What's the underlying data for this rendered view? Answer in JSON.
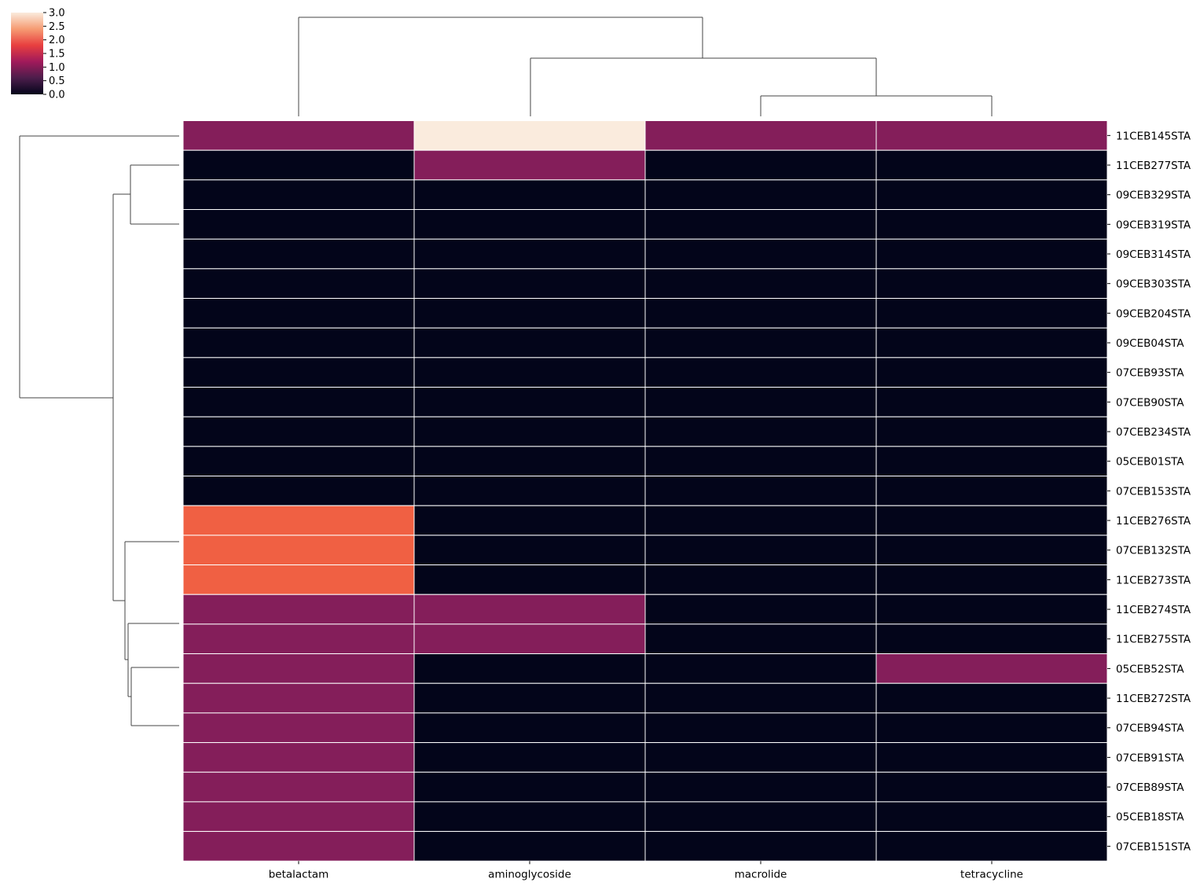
{
  "chart_data": {
    "type": "heatmap",
    "title": "",
    "xlabel": "",
    "ylabel": "",
    "columns": [
      "betalactam",
      "aminoglycoside",
      "macrolide",
      "tetracycline"
    ],
    "rows": [
      "11CEB145STA",
      "11CEB277STA",
      "09CEB329STA",
      "09CEB319STA",
      "09CEB314STA",
      "09CEB303STA",
      "09CEB204STA",
      "09CEB04STA",
      "07CEB93STA",
      "07CEB90STA",
      "07CEB234STA",
      "05CEB01STA",
      "07CEB153STA",
      "11CEB276STA",
      "07CEB132STA",
      "11CEB273STA",
      "11CEB274STA",
      "11CEB275STA",
      "05CEB52STA",
      "11CEB272STA",
      "07CEB94STA",
      "07CEB91STA",
      "07CEB89STA",
      "05CEB18STA",
      "07CEB151STA"
    ],
    "values": [
      [
        1,
        3,
        1,
        1
      ],
      [
        0,
        1,
        0,
        0
      ],
      [
        0,
        0,
        0,
        0
      ],
      [
        0,
        0,
        0,
        0
      ],
      [
        0,
        0,
        0,
        0
      ],
      [
        0,
        0,
        0,
        0
      ],
      [
        0,
        0,
        0,
        0
      ],
      [
        0,
        0,
        0,
        0
      ],
      [
        0,
        0,
        0,
        0
      ],
      [
        0,
        0,
        0,
        0
      ],
      [
        0,
        0,
        0,
        0
      ],
      [
        0,
        0,
        0,
        0
      ],
      [
        0,
        0,
        0,
        0
      ],
      [
        2,
        0,
        0,
        0
      ],
      [
        2,
        0,
        0,
        0
      ],
      [
        2,
        0,
        0,
        0
      ],
      [
        1,
        1,
        0,
        0
      ],
      [
        1,
        1,
        0,
        0
      ],
      [
        1,
        0,
        0,
        1
      ],
      [
        1,
        0,
        0,
        0
      ],
      [
        1,
        0,
        0,
        0
      ],
      [
        1,
        0,
        0,
        0
      ],
      [
        1,
        0,
        0,
        0
      ],
      [
        1,
        0,
        0,
        0
      ],
      [
        1,
        0,
        0,
        0
      ]
    ],
    "colorbar": {
      "range": [
        0,
        3
      ],
      "ticks": [
        "0.0",
        "0.5",
        "1.0",
        "1.5",
        "2.0",
        "2.5",
        "3.0"
      ],
      "colormap": "rocket",
      "stops": [
        "#03051a",
        "#4c1d4b",
        "#a11a5b",
        "#e83f3f",
        "#f69c73",
        "#faebdd"
      ]
    },
    "cell_colors": {
      "0": "#03051a",
      "1": "#841e5a",
      "2": "#f06043",
      "3": "#faebdd"
    },
    "grid_line_color": "#ffffff",
    "dendrogram_line_color": "#444444"
  }
}
